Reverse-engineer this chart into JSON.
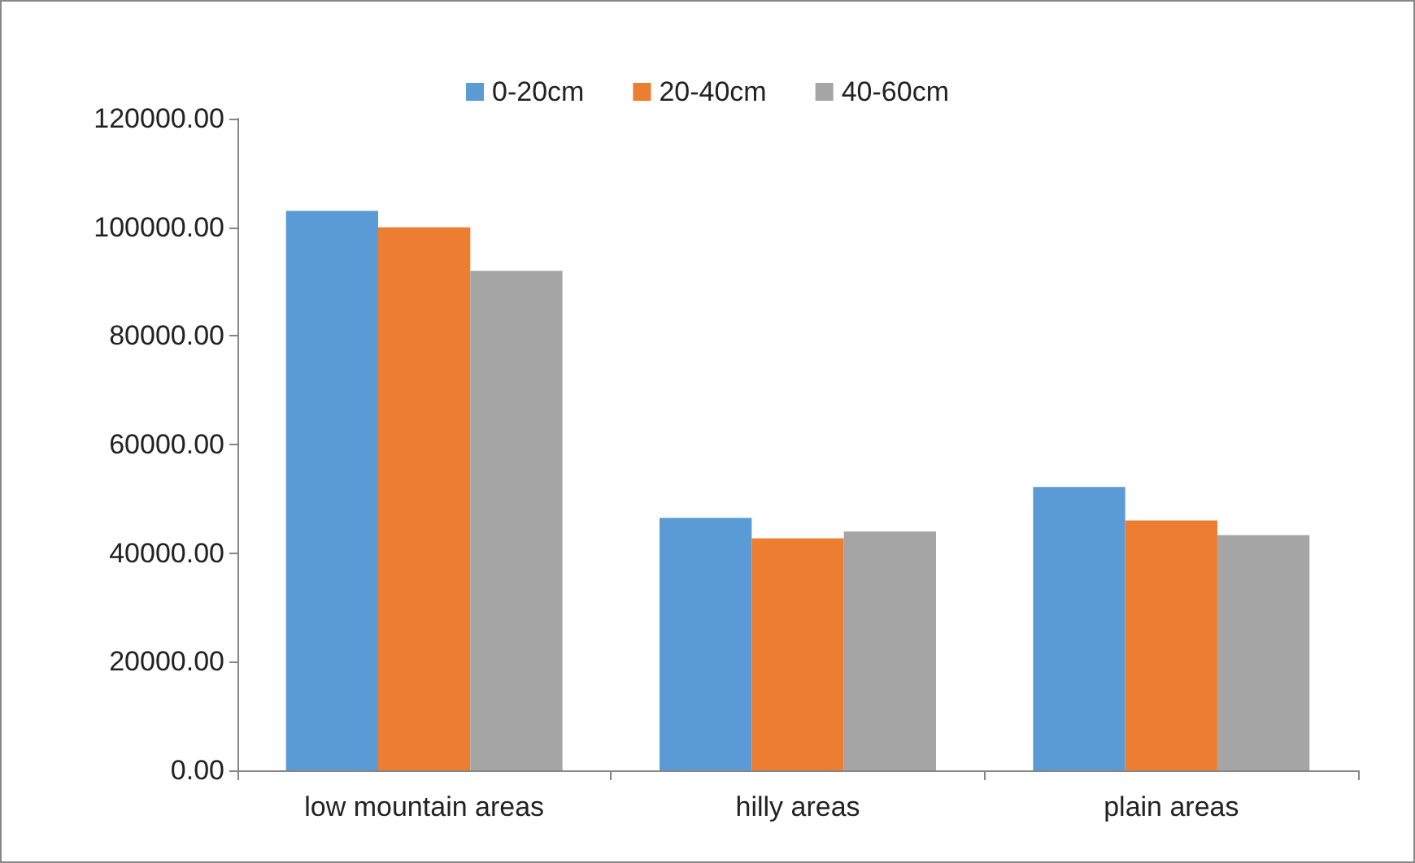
{
  "chart_data": {
    "type": "bar",
    "categories": [
      "low mountain areas",
      "hilly areas",
      "plain areas"
    ],
    "series": [
      {
        "name": "0-20cm",
        "color": "#5b9bd5",
        "values": [
          103000,
          46500,
          52200
        ]
      },
      {
        "name": "20-40cm",
        "color": "#ed7d31",
        "values": [
          100000,
          42700,
          46000
        ]
      },
      {
        "name": "40-60cm",
        "color": "#a5a5a5",
        "values": [
          92000,
          44000,
          43300
        ]
      }
    ],
    "ylim": [
      0,
      120000
    ],
    "yticks": [
      {
        "value": 0,
        "label": "0.00"
      },
      {
        "value": 20000,
        "label": "20000.00"
      },
      {
        "value": 40000,
        "label": "40000.00"
      },
      {
        "value": 60000,
        "label": "60000.00"
      },
      {
        "value": 80000,
        "label": "80000.00"
      },
      {
        "value": 100000,
        "label": "100000.00"
      },
      {
        "value": 120000,
        "label": "120000.00"
      }
    ],
    "grid": false,
    "legend": "top"
  }
}
